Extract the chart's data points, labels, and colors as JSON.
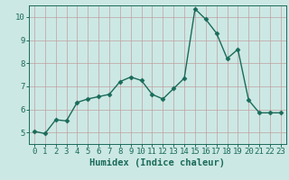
{
  "x": [
    0,
    1,
    2,
    3,
    4,
    5,
    6,
    7,
    8,
    9,
    10,
    11,
    12,
    13,
    14,
    15,
    16,
    17,
    18,
    19,
    20,
    21,
    22,
    23
  ],
  "y": [
    5.05,
    4.95,
    5.55,
    5.5,
    6.3,
    6.45,
    6.55,
    6.65,
    7.2,
    7.4,
    7.25,
    6.65,
    6.45,
    6.9,
    7.35,
    10.35,
    9.9,
    9.3,
    8.2,
    8.6,
    6.4,
    5.85,
    5.85,
    5.85
  ],
  "xlabel": "Humidex (Indice chaleur)",
  "ylim": [
    4.5,
    10.5
  ],
  "xlim": [
    -0.5,
    23.5
  ],
  "yticks": [
    5,
    6,
    7,
    8,
    9,
    10
  ],
  "xticks": [
    0,
    1,
    2,
    3,
    4,
    5,
    6,
    7,
    8,
    9,
    10,
    11,
    12,
    13,
    14,
    15,
    16,
    17,
    18,
    19,
    20,
    21,
    22,
    23
  ],
  "line_color": "#1a6b5a",
  "marker": "D",
  "marker_size": 2.5,
  "bg_color": "#cce8e4",
  "grid_color": "#c0a0a0",
  "axis_color": "#1a6b5a",
  "label_color": "#1a6b5a",
  "tick_color": "#1a6b5a",
  "xlabel_fontsize": 7.5,
  "tick_fontsize": 6.5
}
